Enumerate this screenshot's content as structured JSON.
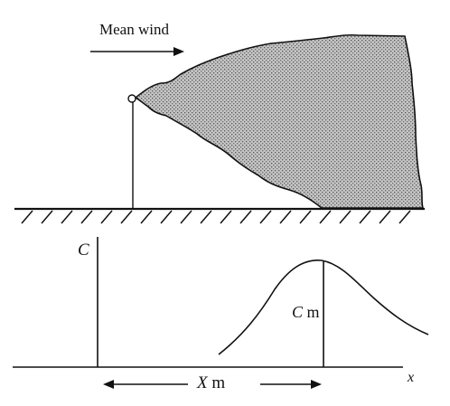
{
  "labels": {
    "mean_wind": "Mean wind",
    "concentration_axis": "C",
    "max_concentration_var": "C",
    "max_concentration_sub": "m",
    "max_distance_var": "X",
    "max_distance_sub": "m",
    "distance_axis": "x"
  },
  "colors": {
    "ink": "#111111",
    "plume_fill": "#b8b8b8",
    "background": "#ffffff"
  }
}
